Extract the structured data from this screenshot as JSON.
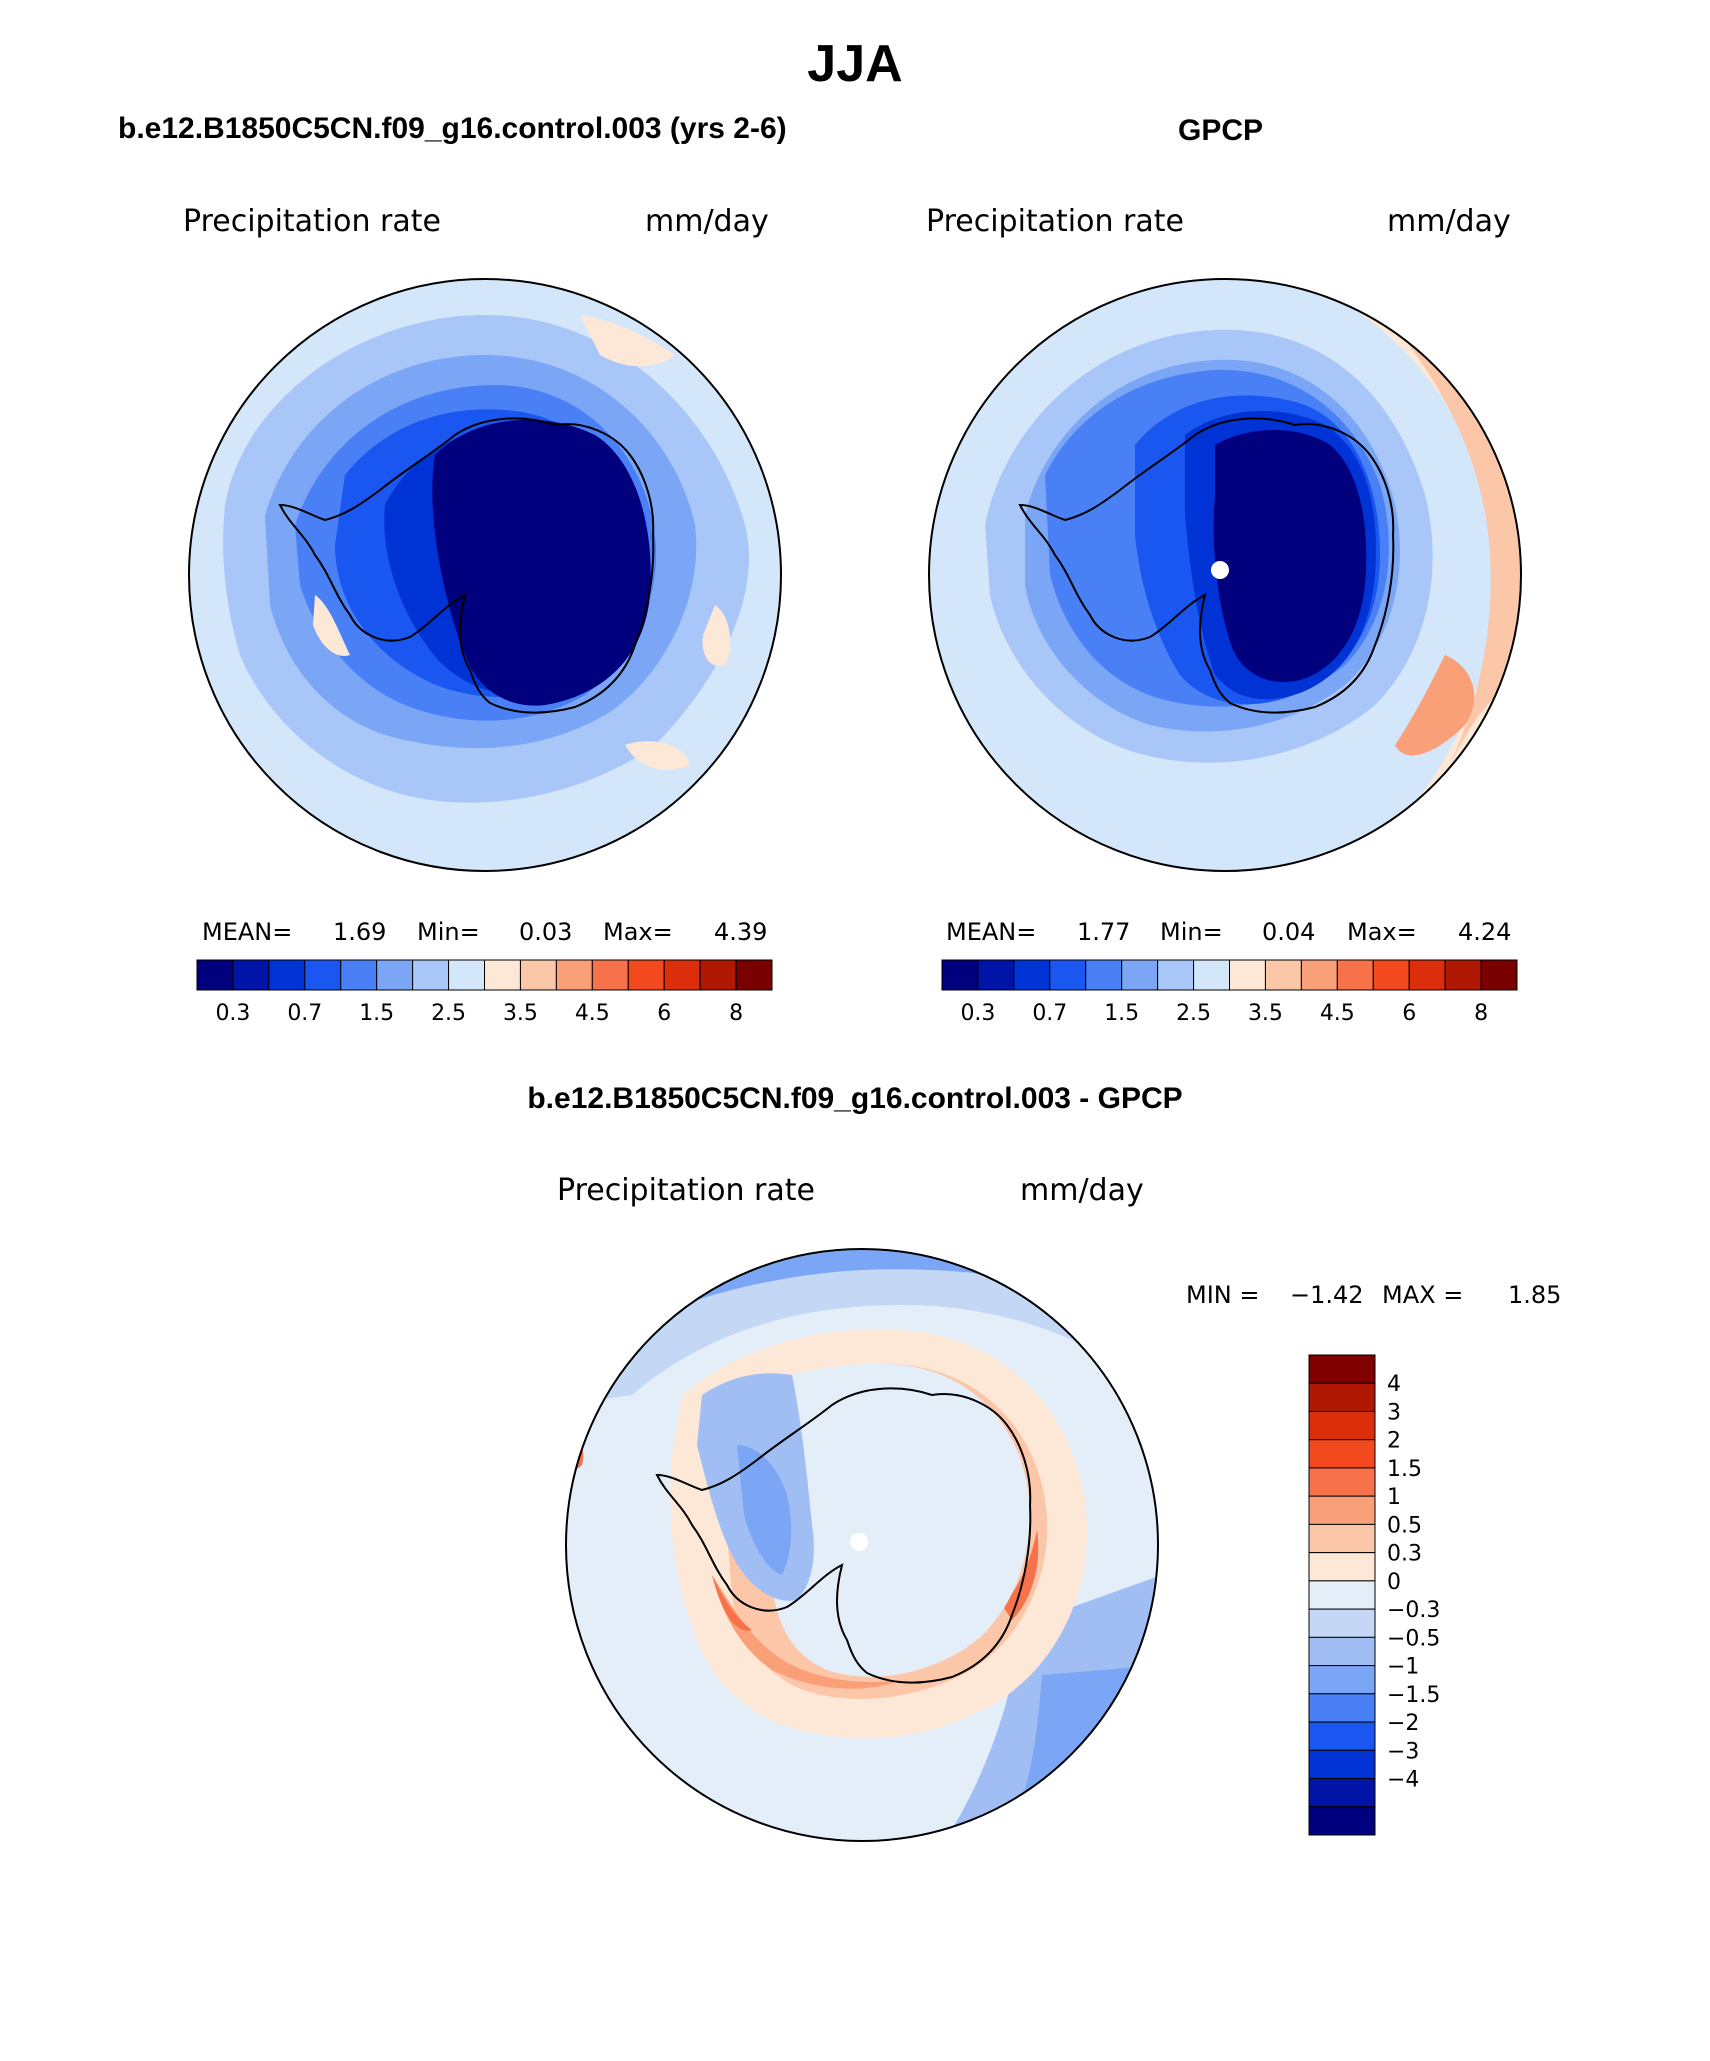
{
  "main_title": "JJA",
  "panels": [
    {
      "title": "b.e12.B1850C5CN.f09_g16.control.003 (yrs 2-6)",
      "left_label": "Precipitation  rate",
      "right_label": "mm/day",
      "stats": {
        "mean_label": "MEAN=",
        "mean": "1.69",
        "min_label": "Min=",
        "min": "0.03",
        "max_label": "Max=",
        "max": "4.39"
      }
    },
    {
      "title": "GPCP",
      "left_label": "Precipitation  rate",
      "right_label": "mm/day",
      "stats": {
        "mean_label": "MEAN=",
        "mean": "1.77",
        "min_label": "Min=",
        "min": "0.04",
        "max_label": "Max=",
        "max": "4.24"
      }
    },
    {
      "title": "b.e12.B1850C5CN.f09_g16.control.003 - GPCP",
      "left_label": "Precipitation  rate",
      "right_label": "mm/day",
      "stats": {
        "min_label": "MIN =",
        "min": "−1.42",
        "max_label": "MAX =",
        "max": "1.85"
      }
    }
  ],
  "abs_colorbar": {
    "colors": [
      "#00007f",
      "#0014a8",
      "#0033d6",
      "#1a56f0",
      "#4a80f5",
      "#7aa6f5",
      "#a8c6f7",
      "#d4e6fa",
      "#fde8d8",
      "#fcc7a8",
      "#f9a078",
      "#f7724a",
      "#f24a1e",
      "#dc2e0a",
      "#b01804",
      "#7a0000"
    ],
    "tick_labels": [
      "0.3",
      "0.7",
      "1.5",
      "2.5",
      "3.5",
      "4.5",
      "6",
      "8"
    ]
  },
  "diff_colorbar": {
    "colors_top_to_bottom": [
      "#800000",
      "#b01804",
      "#dc2e0a",
      "#f24a1e",
      "#f7724a",
      "#f9a078",
      "#fcc7a8",
      "#fde8d8",
      "#e4eef9",
      "#c4d8f6",
      "#a0bef4",
      "#7aa6f5",
      "#4a80f5",
      "#1a56f0",
      "#0033d6",
      "#0014a8",
      "#00007f"
    ],
    "tick_labels": [
      "4",
      "3",
      "2",
      "1.5",
      "1",
      "0.5",
      "0.3",
      "0",
      "−0.3",
      "−0.5",
      "−1",
      "−1.5",
      "−2",
      "−3",
      "−4"
    ]
  }
}
